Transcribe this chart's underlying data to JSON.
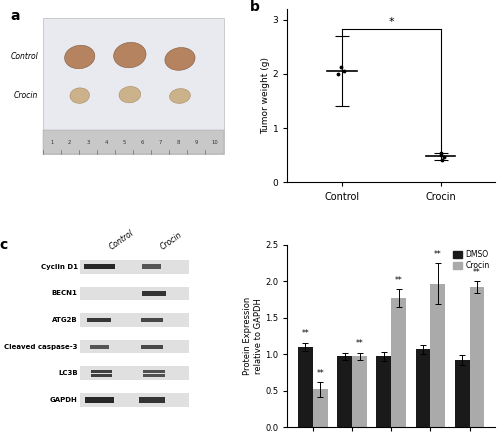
{
  "panel_a_label": "a",
  "panel_b_label": "b",
  "panel_c_label": "c",
  "panel_b_ylabel": "Tumor weight (g)",
  "panel_b_groups": [
    "Control",
    "Crocin"
  ],
  "panel_b_means": [
    2.05,
    0.48
  ],
  "panel_b_errors": [
    0.65,
    0.07
  ],
  "panel_b_data_control": [
    2.0,
    2.05,
    2.12
  ],
  "panel_b_data_crocin": [
    0.42,
    0.47,
    0.51,
    0.55
  ],
  "panel_b_ylim": [
    0,
    3.2
  ],
  "panel_b_yticks": [
    0,
    1.0,
    2.0,
    3.0
  ],
  "panel_b_significance": "*",
  "panel_c_categories": [
    "Cyclin D1",
    "BECN1",
    "ATG2B",
    "Cleaved\nCaspase-3",
    "LC3B"
  ],
  "panel_c_dmso": [
    1.1,
    0.97,
    0.97,
    1.07,
    0.92
  ],
  "panel_c_crocin": [
    0.52,
    0.97,
    1.77,
    1.97,
    1.92
  ],
  "panel_c_dmso_err": [
    0.06,
    0.05,
    0.06,
    0.06,
    0.07
  ],
  "panel_c_crocin_err": [
    0.1,
    0.05,
    0.12,
    0.28,
    0.08
  ],
  "panel_c_ylabel": "Protein Expression\nrelative to GAPDH",
  "panel_c_ylim": [
    0,
    2.5
  ],
  "panel_c_yticks": [
    0.0,
    0.5,
    1.0,
    1.5,
    2.0,
    2.5
  ],
  "panel_c_sig_dmso": [
    "**",
    null,
    null,
    null,
    null
  ],
  "panel_c_sig_crocin": [
    "**",
    "**",
    "**",
    "**",
    "**"
  ],
  "color_dmso": "#1a1a1a",
  "color_crocin": "#aaaaaa",
  "legend_labels": [
    "DMSO",
    "Crocin"
  ],
  "bg_color": "#ffffff",
  "wb_rows": [
    "Cyclin D1",
    "BECN1",
    "ATG2B",
    "Cleaved caspase-3",
    "LC3B",
    "GAPDH"
  ],
  "wb_col_labels": [
    "Control",
    "Crocin"
  ],
  "photo_bg": "#e8eaf0",
  "ruler_bg": "#c8c8c8",
  "tumor_control_color": "#b07850",
  "tumor_crocin_color": "#c8a878"
}
